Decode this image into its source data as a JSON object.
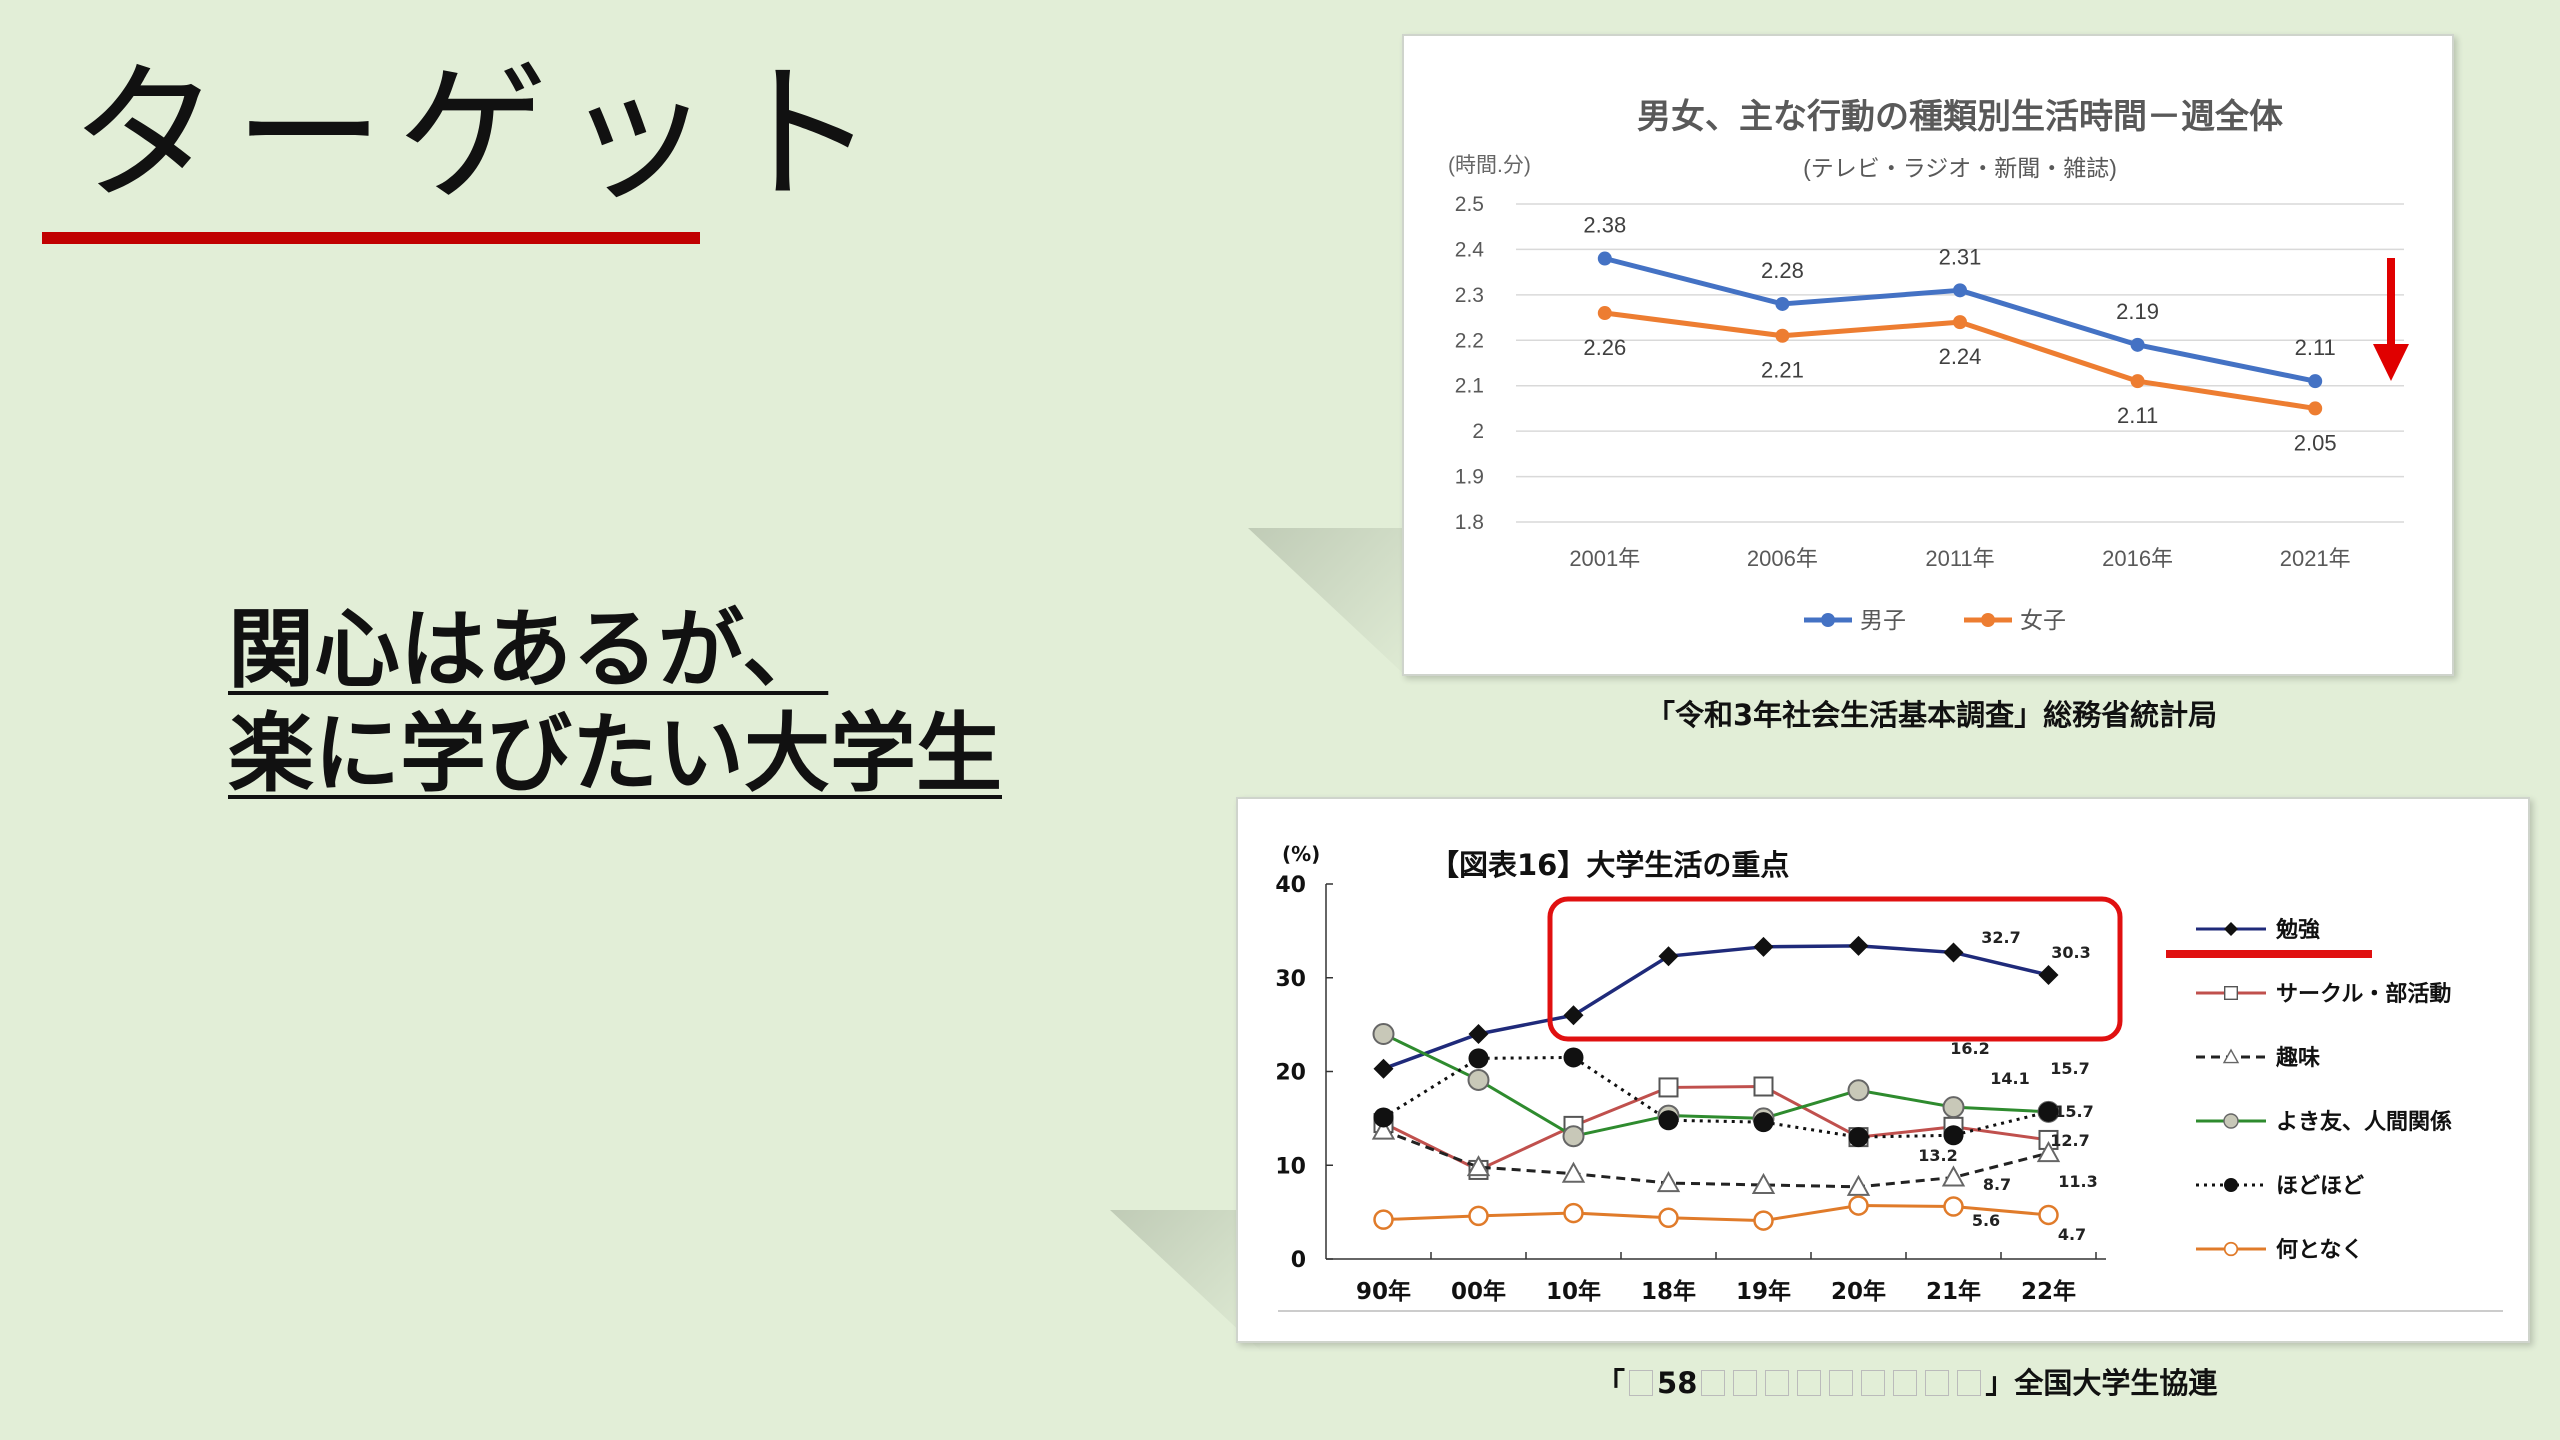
{
  "slide": {
    "title": "ターゲット",
    "message_lines": [
      "関心はあるが、",
      "楽に学びたい大学生"
    ],
    "accent_color": "#c00000"
  },
  "chart1_source": "「令和3年社会生活基本調査」総務省統計局",
  "chart2_source": {
    "prefix": "「",
    "number": "58",
    "suffix": "」全国大学生協連"
  },
  "chart_data": [
    {
      "type": "line",
      "title": "男女、主な行動の種類別生活時間－週全体",
      "subtitle": "(テレビ・ラジオ・新聞・雑誌)",
      "ylabel": "(時間.分)",
      "ylim": [
        1.8,
        2.5
      ],
      "yticks": [
        "2.5",
        "2.4",
        "2.3",
        "2.2",
        "2.1",
        "2",
        "1.9",
        "1.8"
      ],
      "categories": [
        "2001年",
        "2006年",
        "2011年",
        "2016年",
        "2021年"
      ],
      "series": [
        {
          "name": "男子",
          "color": "#4472c4",
          "values": [
            2.38,
            2.28,
            2.31,
            2.19,
            2.11
          ],
          "labels": [
            "2.38",
            "2.28",
            "2.31",
            "2.19",
            "2.11"
          ]
        },
        {
          "name": "女子",
          "color": "#ed7d31",
          "values": [
            2.26,
            2.21,
            2.24,
            2.11,
            2.05
          ],
          "labels": [
            "2.26",
            "2.21",
            "2.24",
            "2.11",
            "2.05"
          ]
        }
      ],
      "grid": true,
      "legend": "bottom",
      "annotation": "red down arrow at right"
    },
    {
      "type": "line",
      "title": "【図表16】大学生活の重点",
      "ylabel": "(%)",
      "ylim": [
        0,
        40
      ],
      "yticks": [
        "40",
        "30",
        "20",
        "10",
        "0"
      ],
      "categories": [
        "90年",
        "00年",
        "10年",
        "18年",
        "19年",
        "20年",
        "21年",
        "22年"
      ],
      "series": [
        {
          "name": "勉強",
          "color": "#1f2a7a",
          "marker": "diamond",
          "style": "solid",
          "values": [
            20.3,
            24.0,
            26.0,
            32.3,
            33.3,
            33.4,
            32.7,
            30.3
          ]
        },
        {
          "name": "サークル・部活動",
          "color": "#c0504d",
          "marker": "square",
          "style": "solid",
          "values": [
            14.5,
            9.5,
            14.2,
            18.3,
            18.4,
            13.0,
            14.1,
            12.7
          ]
        },
        {
          "name": "趣味",
          "color": "#222222",
          "marker": "triangle",
          "style": "dashed",
          "values": [
            13.7,
            9.8,
            9.1,
            8.1,
            7.9,
            7.7,
            8.7,
            11.3
          ]
        },
        {
          "name": "よき友、人間関係",
          "color": "#2e8b2e",
          "marker": "circle-gray",
          "style": "solid",
          "values": [
            24.0,
            19.1,
            13.1,
            15.3,
            15.0,
            18.0,
            16.2,
            15.7
          ]
        },
        {
          "name": "ほどほど",
          "color": "#111111",
          "marker": "circle-black",
          "style": "dotted",
          "values": [
            15.1,
            21.4,
            21.5,
            14.8,
            14.6,
            13.0,
            13.2,
            15.7
          ]
        },
        {
          "name": "何となく",
          "color": "#e07b2a",
          "marker": "circle-open",
          "style": "solid",
          "values": [
            4.2,
            4.6,
            4.9,
            4.4,
            4.1,
            5.7,
            5.6,
            4.7
          ]
        }
      ],
      "value_labels": [
        "32.7",
        "30.3",
        "16.2",
        "14.1",
        "15.7",
        "15.7",
        "13.2",
        "12.7",
        "8.7",
        "11.3",
        "5.6",
        "4.7"
      ],
      "highlight": "red rounded box around 勉強 series",
      "legend": "right"
    }
  ]
}
